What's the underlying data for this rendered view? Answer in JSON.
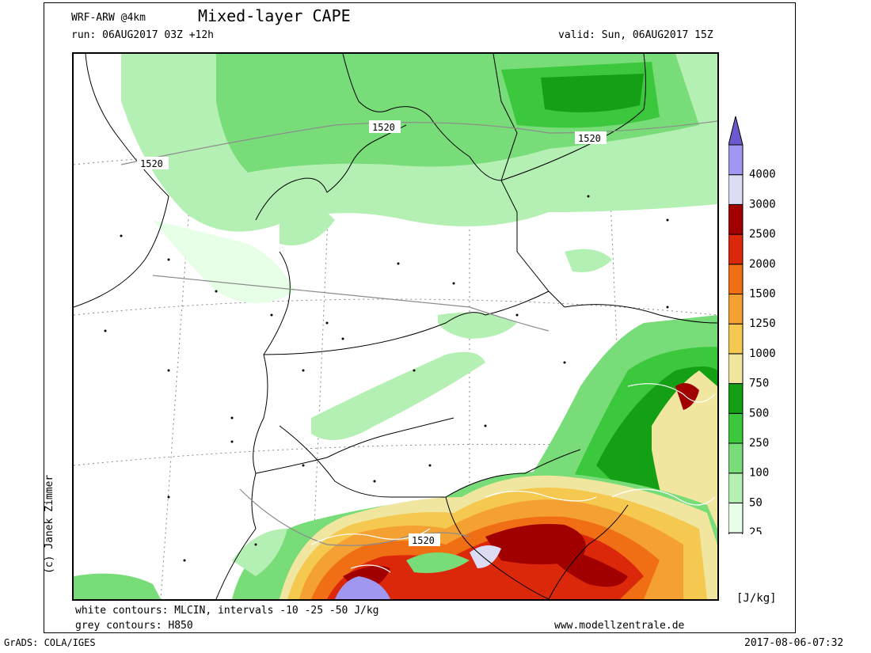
{
  "header": {
    "model": "WRF-ARW @4km",
    "title": "Mixed-layer CAPE",
    "run": "run: 06AUG2017 03Z +12h",
    "valid": "valid: Sun, 06AUG2017 15Z"
  },
  "footer": {
    "white_contours": "white contours: MLCIN, intervals -10 -25 -50 J/kg",
    "grey_contours": "grey contours: H850",
    "website": "www.modellzentrale.de",
    "grads": "GrADS: COLA/IGES",
    "timestamp": "2017-08-06-07:32",
    "credit": "(c) Janek Zimmer"
  },
  "map": {
    "contour_labels": [
      "1520",
      "1520",
      "1520",
      "1520"
    ]
  },
  "legend": {
    "unit": "[J/kg]",
    "levels": [
      {
        "label": "25",
        "color": "#e6ffe6"
      },
      {
        "label": "50",
        "color": "#b4f0b4"
      },
      {
        "label": "100",
        "color": "#78dc78"
      },
      {
        "label": "250",
        "color": "#3cc83c"
      },
      {
        "label": "500",
        "color": "#14a014"
      },
      {
        "label": "750",
        "color": "#f0e6a0"
      },
      {
        "label": "1000",
        "color": "#f5c850"
      },
      {
        "label": "1250",
        "color": "#f5a032"
      },
      {
        "label": "1500",
        "color": "#f06e14"
      },
      {
        "label": "2000",
        "color": "#dc280a"
      },
      {
        "label": "2500",
        "color": "#a00000"
      },
      {
        "label": "3000",
        "color": "#dcdcf5"
      },
      {
        "label": "4000",
        "color": "#a098f0"
      }
    ],
    "top_color": "#6a5acd"
  }
}
